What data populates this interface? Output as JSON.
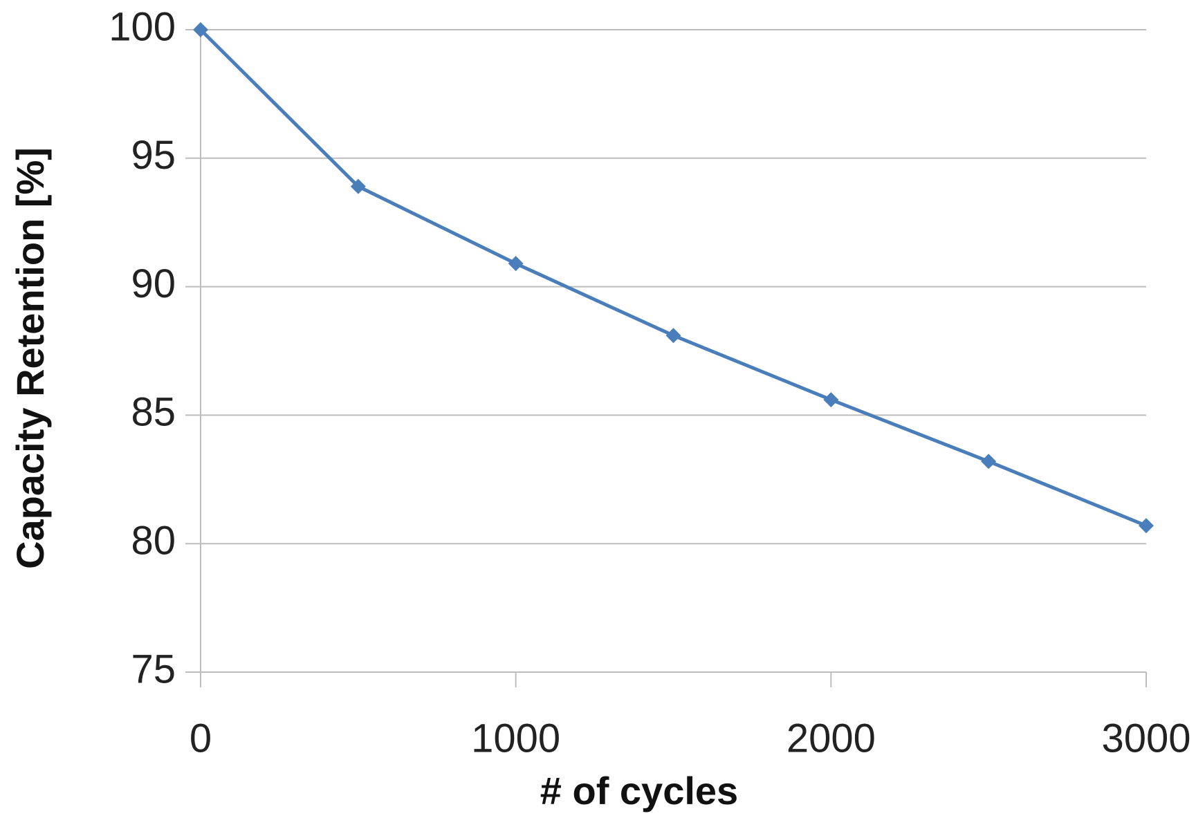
{
  "chart_data": {
    "type": "line",
    "x_label": "# of cycles",
    "y_label": "Capacity Retention [%]",
    "x": [
      0,
      500,
      1000,
      1500,
      2000,
      2500,
      3000
    ],
    "series": [
      {
        "name": "Capacity Retention",
        "color": "#4a7ebb",
        "values": [
          100,
          93.9,
          90.9,
          88.1,
          85.6,
          83.2,
          80.7
        ]
      }
    ],
    "xlim": [
      0,
      3000
    ],
    "xticks": [
      0,
      1000,
      2000,
      3000
    ],
    "ylim": [
      75,
      100
    ],
    "yticks": [
      75,
      80,
      85,
      90,
      95,
      100
    ],
    "grid": true
  }
}
